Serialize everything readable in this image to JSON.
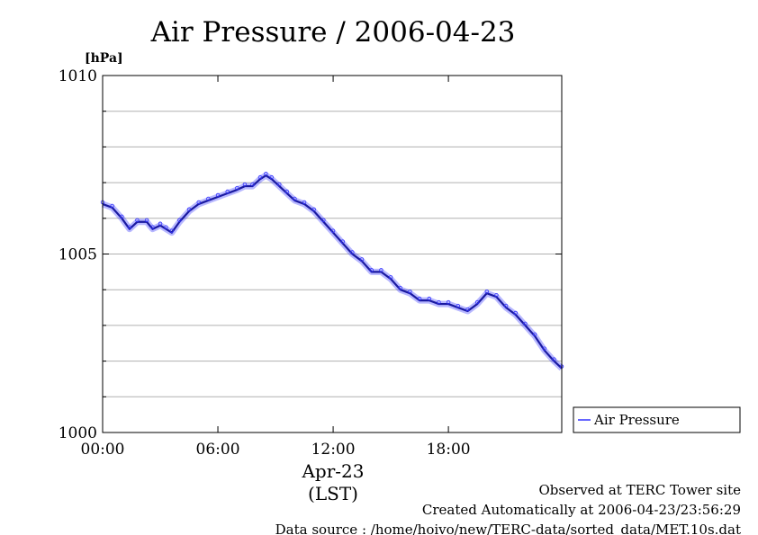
{
  "chart_data": {
    "type": "line",
    "title": "Air Pressure / 2006-04-23",
    "unit_label": "[hPa]",
    "xlabel_date": "Apr-23",
    "xlabel_tz": "(LST)",
    "ylim": [
      1000,
      1010
    ],
    "xlim_hours": [
      0,
      23.9
    ],
    "y_ticks": [
      1000,
      1005,
      1010
    ],
    "y_tick_labels": [
      "1000",
      "1005",
      "1010"
    ],
    "y_grid": [
      1001,
      1002,
      1003,
      1004,
      1005,
      1006,
      1007,
      1008,
      1009
    ],
    "x_ticks": [
      0,
      6,
      12,
      18
    ],
    "x_tick_labels": [
      "00:00",
      "06:00",
      "12:00",
      "18:00"
    ],
    "grid": true,
    "legend_position": "right-bottom",
    "series": [
      {
        "name": "Air Pressure",
        "color": "#3333ff",
        "x": [
          0,
          0.5,
          1.0,
          1.4,
          1.8,
          2.3,
          2.6,
          3.0,
          3.3,
          3.6,
          4.0,
          4.5,
          5.0,
          5.5,
          6.0,
          6.5,
          7.0,
          7.4,
          7.8,
          8.2,
          8.5,
          8.8,
          9.2,
          9.6,
          10.0,
          10.5,
          11.0,
          11.5,
          12.0,
          12.5,
          13.0,
          13.5,
          14.0,
          14.5,
          15.0,
          15.5,
          16.0,
          16.5,
          17.0,
          17.5,
          18.0,
          18.5,
          19.0,
          19.5,
          20.0,
          20.5,
          21.0,
          21.5,
          22.0,
          22.5,
          23.0,
          23.5,
          23.9
        ],
        "values": [
          1006.4,
          1006.3,
          1006.0,
          1005.7,
          1005.9,
          1005.9,
          1005.7,
          1005.8,
          1005.7,
          1005.6,
          1005.9,
          1006.2,
          1006.4,
          1006.5,
          1006.6,
          1006.7,
          1006.8,
          1006.9,
          1006.9,
          1007.1,
          1007.2,
          1007.1,
          1006.9,
          1006.7,
          1006.5,
          1006.4,
          1006.2,
          1005.9,
          1005.6,
          1005.3,
          1005.0,
          1004.8,
          1004.5,
          1004.5,
          1004.3,
          1004.0,
          1003.9,
          1003.7,
          1003.7,
          1003.6,
          1003.6,
          1003.5,
          1003.4,
          1003.6,
          1003.9,
          1003.8,
          1003.5,
          1003.3,
          1003.0,
          1002.7,
          1002.3,
          1002.0,
          1001.8
        ]
      }
    ]
  },
  "footer": {
    "line1": "Observed at TERC Tower site",
    "line2": "Created Automatically at 2006-04-23/23:56:29",
    "line3": "Data source : /home/hoivo/new/TERC-data/sorted_data/MET.10s.dat"
  }
}
